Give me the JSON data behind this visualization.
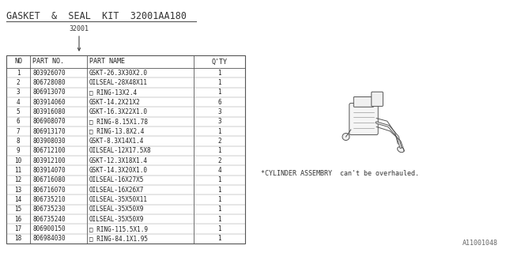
{
  "title": "GASKET  &  SEAL  KIT  32001AA180",
  "subtitle": "32001",
  "note": "*CYLINDER ASSEMBRY  can't be overhauled.",
  "watermark": "A11001048",
  "bg_color": "#ffffff",
  "columns": [
    "NO",
    "PART NO.",
    "PART NAME",
    "Q'TY"
  ],
  "rows": [
    [
      "1",
      "803926070",
      "GSKT-26.3X30X2.0",
      "1"
    ],
    [
      "2",
      "806728080",
      "OILSEAL-28X48X11",
      "1"
    ],
    [
      "3",
      "806913070",
      "□ RING-13X2.4",
      "1"
    ],
    [
      "4",
      "803914060",
      "GSKT-14.2X21X2",
      "6"
    ],
    [
      "5",
      "803916080",
      "GSKT-16.3X22X1.0",
      "3"
    ],
    [
      "6",
      "806908070",
      "□ RING-8.15X1.78",
      "3"
    ],
    [
      "7",
      "806913170",
      "□ RING-13.8X2.4",
      "1"
    ],
    [
      "8",
      "803908030",
      "GSKT-8.3X14X1.4",
      "2"
    ],
    [
      "9",
      "806712100",
      "OILSEAL-12X17.5X8",
      "1"
    ],
    [
      "10",
      "803912100",
      "GSKT-12.3X18X1.4",
      "2"
    ],
    [
      "11",
      "803914070",
      "GSKT-14.3X20X1.0",
      "4"
    ],
    [
      "12",
      "806716080",
      "OILSEAL-16X27X5",
      "1"
    ],
    [
      "13",
      "806716070",
      "OILSEAL-16X26X7",
      "1"
    ],
    [
      "14",
      "806735210",
      "OILSEAL-35X50X11",
      "1"
    ],
    [
      "15",
      "806735230",
      "OILSEAL-35X50X9",
      "1"
    ],
    [
      "16",
      "806735240",
      "OILSEAL-35X50X9",
      "1"
    ],
    [
      "17",
      "806900150",
      "□ RING-115.5X1.9",
      "1"
    ],
    [
      "18",
      "806984030",
      "□ RING-84.1X1.95",
      "1"
    ]
  ],
  "font_size": 5.5,
  "header_font_size": 6.0,
  "title_fontsize": 8.5,
  "subtitle_fontsize": 6.0,
  "note_fontsize": 6.0,
  "watermark_fontsize": 6.0
}
